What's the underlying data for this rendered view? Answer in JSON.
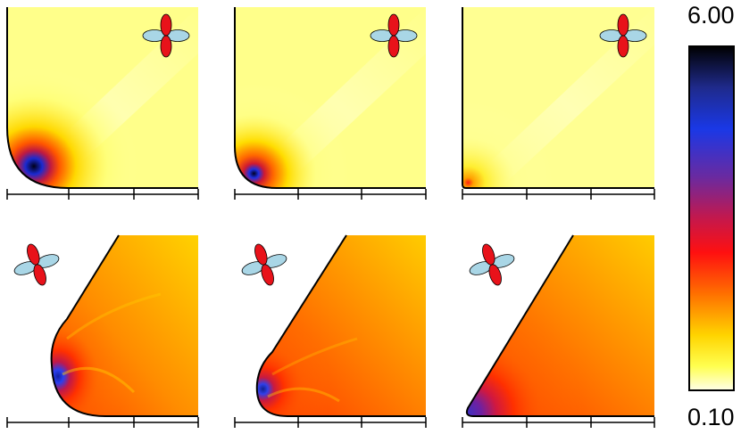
{
  "colorbar": {
    "max_label": "6.00",
    "min_label": "0.10",
    "gradient_stops": [
      "#000000",
      "#1f2a8c",
      "#1a38e6",
      "#6a2aa0",
      "#c4184c",
      "#ff1010",
      "#ff7000",
      "#ffd400",
      "#ffff50",
      "#ffffe8"
    ]
  },
  "colors": {
    "orbital_red": "#e8121a",
    "orbital_blue": "#a9d6e6",
    "outline": "#000000"
  },
  "panels": [
    {
      "id": "top-left",
      "row": "top",
      "shape": "rounded-corner",
      "orbital": "upright",
      "hotspot": "strong"
    },
    {
      "id": "top-middle",
      "row": "top",
      "shape": "rounded-corner",
      "orbital": "upright",
      "hotspot": "medium"
    },
    {
      "id": "top-right",
      "row": "top",
      "shape": "sharp-corner",
      "orbital": "upright",
      "hotspot": "weak"
    },
    {
      "id": "bottom-left",
      "row": "bottom",
      "shape": "rounded-wedge",
      "orbital": "tilted",
      "hotspot": "strong"
    },
    {
      "id": "bottom-middle",
      "row": "bottom",
      "shape": "rounded-wedge",
      "orbital": "tilted",
      "hotspot": "medium"
    },
    {
      "id": "bottom-right",
      "row": "bottom",
      "shape": "sharp-wedge",
      "orbital": "tilted",
      "hotspot": "weak"
    }
  ]
}
